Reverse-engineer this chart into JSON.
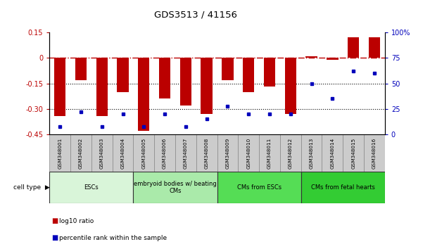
{
  "title": "GDS3513 / 41156",
  "samples": [
    "GSM348001",
    "GSM348002",
    "GSM348003",
    "GSM348004",
    "GSM348005",
    "GSM348006",
    "GSM348007",
    "GSM348008",
    "GSM348009",
    "GSM348010",
    "GSM348011",
    "GSM348012",
    "GSM348013",
    "GSM348014",
    "GSM348015",
    "GSM348016"
  ],
  "log10_ratio": [
    -0.34,
    -0.13,
    -0.34,
    -0.2,
    -0.43,
    -0.24,
    -0.28,
    -0.33,
    -0.13,
    -0.2,
    -0.17,
    -0.33,
    0.01,
    -0.01,
    0.12,
    0.12
  ],
  "percentile_rank": [
    8,
    22,
    8,
    20,
    8,
    20,
    8,
    15,
    28,
    20,
    20,
    20,
    50,
    35,
    62,
    60
  ],
  "cell_types": [
    {
      "label": "ESCs",
      "start": 0,
      "end": 4,
      "color": "#d9f5d9"
    },
    {
      "label": "embryoid bodies w/ beating\nCMs",
      "start": 4,
      "end": 8,
      "color": "#aaeaaa"
    },
    {
      "label": "CMs from ESCs",
      "start": 8,
      "end": 12,
      "color": "#55dd55"
    },
    {
      "label": "CMs from fetal hearts",
      "start": 12,
      "end": 16,
      "color": "#33cc33"
    }
  ],
  "bar_color": "#bb0000",
  "dot_color": "#0000bb",
  "ylim_left": [
    -0.45,
    0.15
  ],
  "ylim_right": [
    0,
    100
  ],
  "yticks_left": [
    0.15,
    0.0,
    -0.15,
    -0.3,
    -0.45
  ],
  "ytick_labels_left": [
    "0.15",
    "0",
    "-0.15",
    "-0.30",
    "-0.45"
  ],
  "yticks_right": [
    100,
    75,
    50,
    25,
    0
  ],
  "ytick_labels_right": [
    "100%",
    "75",
    "50",
    "25",
    "0"
  ],
  "hline_zero_color": "#bb0000",
  "hline_dotted_vals": [
    -0.15,
    -0.3
  ],
  "background_color": "#ffffff",
  "sample_box_color": "#cccccc",
  "sample_box_edge": "#888888"
}
